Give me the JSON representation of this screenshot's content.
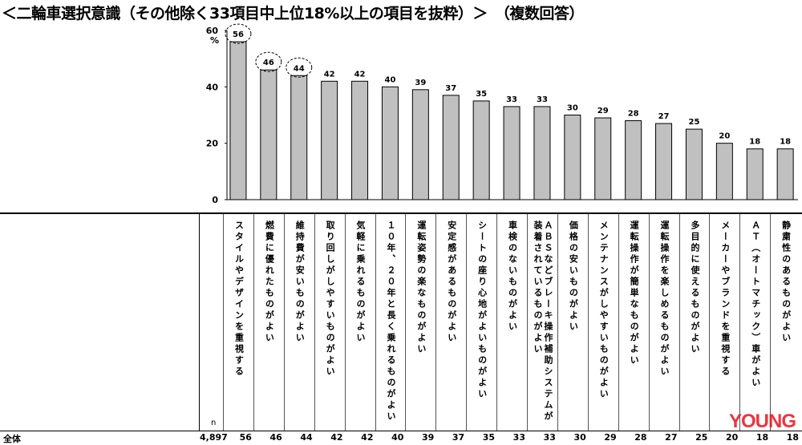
{
  "title": "＜二輪車選択意識（その他除く33項目中上位18%以上の項目を抜粋）＞　（複数回答）",
  "chart_data": {
    "type": "bar",
    "ylabel": "%",
    "ylim": [
      0,
      60
    ],
    "yticks": [
      "0",
      "20",
      "40",
      "60"
    ],
    "categories": [
      "スタイルやデザインを重視する",
      "燃費に優れたものがよい",
      "維持費が安いものがよい",
      "取り回しがしやすいものがよい",
      "気軽に乗れるものがよい",
      "１０年、２０年と長く乗れるものがよい",
      "運転姿勢の楽なものがよい",
      "安定感があるものがよい",
      "シートの座り心地がよいものがよい",
      "車検のないものがよい",
      "ＡＢＳなどブレーキ操作補助システムが装着されているものがよい",
      "価格の安いものがよい",
      "メンテナンスがしやすいものがよい",
      "運転操作が簡単なものがよい",
      "運転操作を楽しめるものがよい",
      "多目的に使えるものがよい",
      "メーカーやブランドを重視する",
      "ＡＴ（オートマチック）車がよい",
      "静粛性のあるものがよい"
    ],
    "values": [
      56,
      46,
      44,
      42,
      42,
      40,
      39,
      37,
      35,
      33,
      33,
      30,
      29,
      28,
      27,
      25,
      20,
      18,
      18
    ],
    "highlighted": [
      0,
      1,
      2
    ],
    "bar_color": "#c0c0c0"
  },
  "table": {
    "row_label": "全体",
    "n_header": "n",
    "n_value": "4,897"
  },
  "watermark": "YOUNG MACHINE"
}
